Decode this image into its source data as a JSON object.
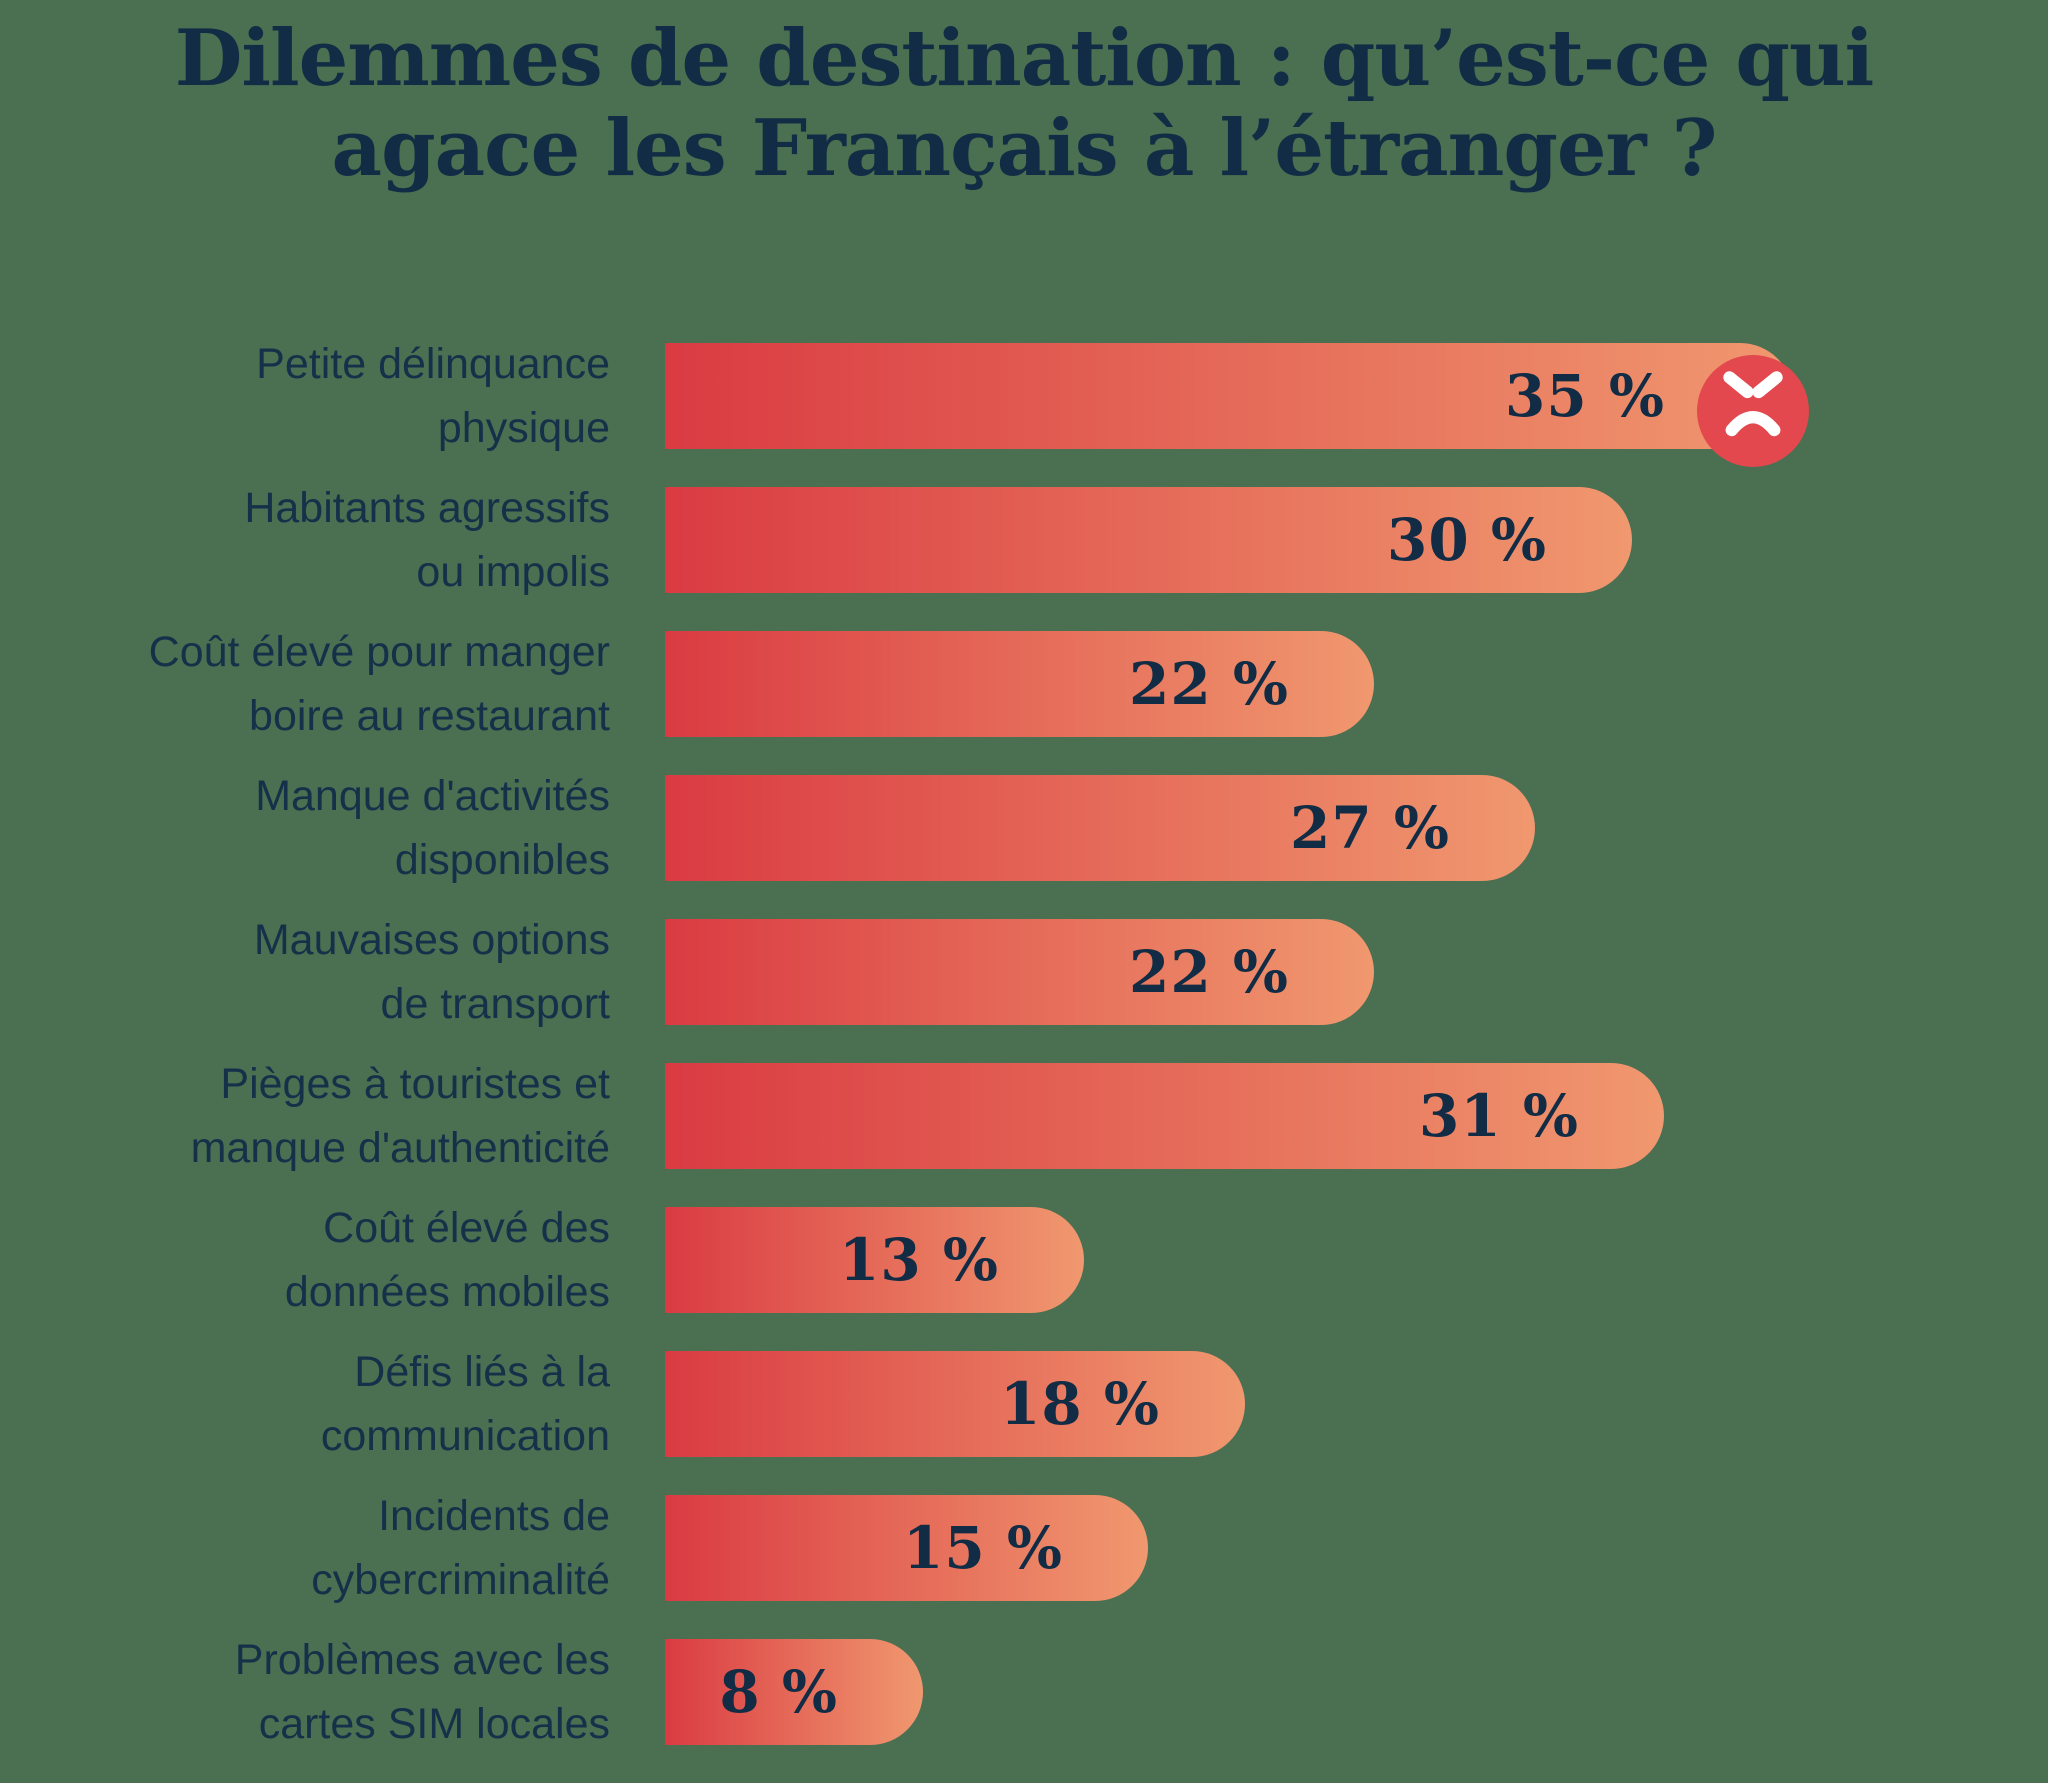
{
  "title": "Dilemmes de destination : qu’est-ce qui\nagace les Français à l’étranger ?",
  "chart_data": {
    "type": "bar",
    "orientation": "horizontal",
    "title": "Dilemmes de destination : qu’est-ce qui agace les Français à l’étranger ?",
    "unit": "%",
    "xlim": [
      0,
      35
    ],
    "grid": false,
    "legend": false,
    "categories": [
      "Petite délinquance\nphysique",
      "Habitants agressifs\nou impolis",
      "Coût élevé pour manger\nboire au restaurant",
      "Manque d'activités\ndisponibles",
      "Mauvaises options\nde transport",
      "Pièges à touristes et\nmanque d'authenticité",
      "Coût élevé des\ndonnées mobiles",
      "Défis liés à la\ncommunication",
      "Incidents de\ncybercriminalité",
      "Problèmes avec les\ncartes SIM locales"
    ],
    "values": [
      35,
      30,
      22,
      27,
      22,
      31,
      13,
      18,
      15,
      8
    ],
    "value_labels": [
      "35 %",
      "30 %",
      "22 %",
      "27 %",
      "22 %",
      "31 %",
      "13 %",
      "18 %",
      "15 %",
      "8 %"
    ],
    "annotations": [
      {
        "row_index": 0,
        "icon": "angry-face-icon"
      }
    ]
  },
  "colors": {
    "background": "#4A7051",
    "title_text": "#112C44",
    "label_text": "#16304A",
    "value_text": "#112C44",
    "bar_gradient_start": "#DA3B42",
    "bar_gradient_end": "#F0986F",
    "angry_face_bg": "#E2484D",
    "angry_face_features": "#FFFFFF"
  }
}
